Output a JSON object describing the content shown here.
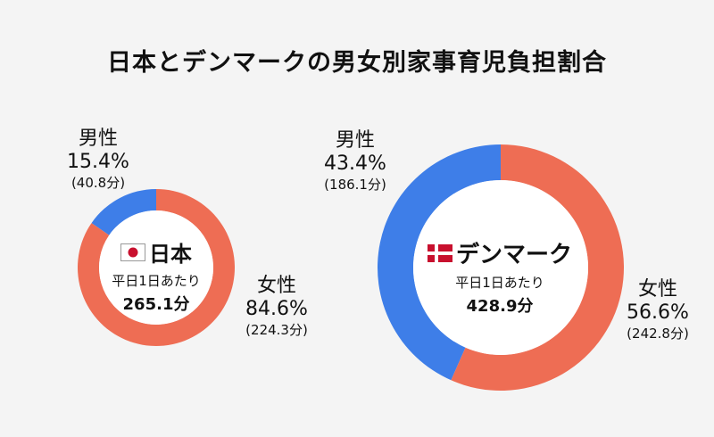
{
  "title": "日本とデンマークの男女別家事育児負担割合",
  "colors": {
    "male": "#3e7ee8",
    "female": "#ee6d54",
    "background": "#f4f4f4"
  },
  "chart_data": [
    {
      "type": "pie",
      "title": "日本",
      "subtitle": "平日1日あたり",
      "total": "265.1分",
      "flag": "japan-flag-icon",
      "slices": [
        {
          "label": "男性",
          "percent_text": "15.4%",
          "minutes_text": "(40.8分)",
          "value": 15.4,
          "minutes": 40.8
        },
        {
          "label": "女性",
          "percent_text": "84.6%",
          "minutes_text": "(224.3分)",
          "value": 84.6,
          "minutes": 224.3
        }
      ]
    },
    {
      "type": "pie",
      "title": "デンマーク",
      "subtitle": "平日1日あたり",
      "total": "428.9分",
      "flag": "denmark-flag-icon",
      "slices": [
        {
          "label": "男性",
          "percent_text": "43.4%",
          "minutes_text": "(186.1分)",
          "value": 43.4,
          "minutes": 186.1
        },
        {
          "label": "女性",
          "percent_text": "56.6%",
          "minutes_text": "(242.8分)",
          "value": 56.6,
          "minutes": 242.8
        }
      ]
    }
  ]
}
